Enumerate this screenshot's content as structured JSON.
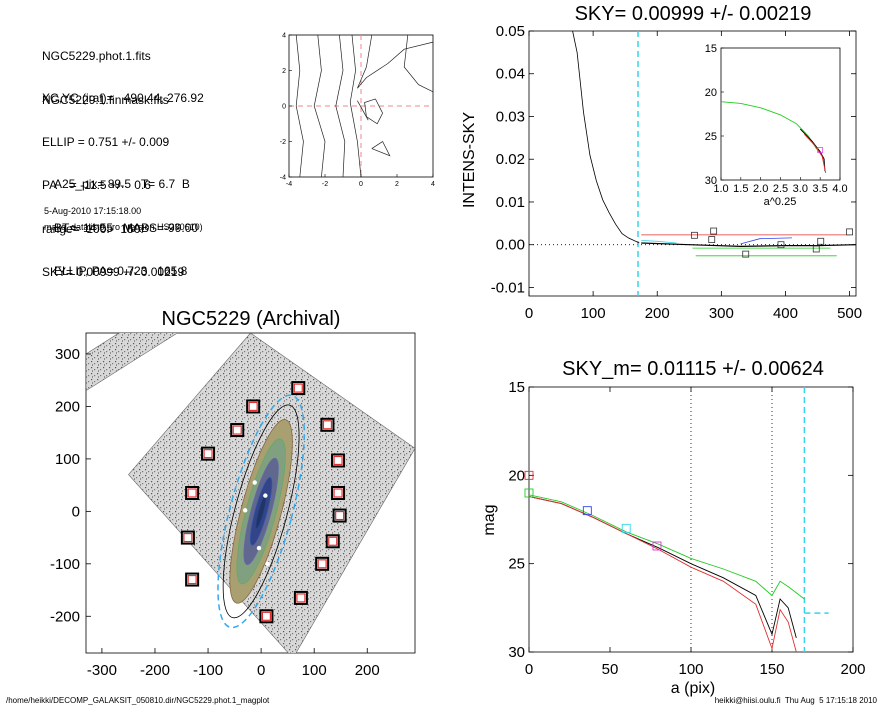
{
  "header": {
    "block1": [
      "NGC5229.phot.1.fits",
      "NGC5229.1.finmask.fits"
    ],
    "block2": [
      "XC,YC (iraf)=   490.44, 276.92",
      "ELLIP = 0.751 +/- 0.009",
      "PA    = -11.5 +/-   0.6",
      "range=  100.-  150.",
      "SKY= 0.00999 +/- 0.00219"
    ],
    "block3": [
      "A25_pix= 89.5   T= 6.7  B",
      "BT=  14.55   MABS=-99.00",
      "ELLIP, PA= 0.723   165.8"
    ],
    "date": "5-Aug-2010 17:15:18.00",
    "program": "make_datalist0.pro (version HS230610)"
  },
  "footer": {
    "left": "/home/heikki/DECOMP_GALAKSIT_050810.dir/NGC5229.phot.1_magplot",
    "right": "heikki@hiisi.oulu.fi  Thu Aug  5 17:15:18 2010"
  },
  "colors": {
    "cyan": "#33d6e8",
    "red": "#e03030",
    "green": "#22cc22",
    "blue": "#3344ee",
    "magenta": "#dd33dd",
    "salmon": "#ee8888"
  },
  "chart_data": [
    {
      "type": "line",
      "id": "contour",
      "title": "",
      "xlim": [
        -4,
        4
      ],
      "ylim": [
        -4,
        4
      ],
      "xticks": [
        "-4",
        "-2",
        "0",
        "2",
        "4"
      ],
      "yticks": [
        "-4",
        "-2",
        "0",
        "2",
        "4"
      ],
      "crosshair": {
        "x": 0,
        "y": 0
      }
    },
    {
      "type": "line",
      "id": "sky",
      "title": "SKY= 0.00999 +/- 0.00219",
      "xlabel": "",
      "ylabel": "INTENS-SKY",
      "xlim": [
        0,
        510
      ],
      "ylim": [
        -0.012,
        0.05
      ],
      "xticks": [
        "0",
        "100",
        "200",
        "300",
        "400",
        "500"
      ],
      "yticks": [
        "-0.01",
        "0.00",
        "0.01",
        "0.02",
        "0.03",
        "0.04",
        "0.05"
      ],
      "vline_x": 170,
      "series": [
        {
          "x": [
            68,
            75,
            85,
            95,
            105,
            115,
            125,
            135,
            145,
            155,
            165,
            172
          ],
          "y": [
            0.05,
            0.045,
            0.031,
            0.021,
            0.015,
            0.0105,
            0.0075,
            0.0048,
            0.0026,
            0.0016,
            0.0009,
            0.0004
          ]
        },
        {
          "x": [
            175,
            250,
            330,
            400,
            450,
            510
          ],
          "y": [
            0.0004,
            0.0,
            -0.0004,
            -0.0002,
            -0.0002,
            0.0
          ]
        }
      ],
      "markers": [
        [
          258,
          0.0022
        ],
        [
          285,
          0.0012
        ],
        [
          288,
          0.0032
        ],
        [
          338,
          -0.0022
        ],
        [
          393,
          0.0
        ],
        [
          448,
          -0.001
        ],
        [
          455,
          0.0008
        ],
        [
          500,
          0.003
        ]
      ],
      "inset": {
        "xlabel": "a^0.25",
        "xlim": [
          1.0,
          4.0
        ],
        "ylim": [
          30,
          15
        ],
        "xticks": [
          "1.0",
          "1.5",
          "2.0",
          "2.5",
          "3.0",
          "3.5",
          "4.0"
        ],
        "yticks": [
          "15",
          "20",
          "25",
          "30"
        ]
      }
    },
    {
      "type": "scatter",
      "id": "image",
      "title": "NGC5229 (Archival)",
      "xlim": [
        -330,
        290
      ],
      "ylim": [
        -270,
        340
      ],
      "xticks": [
        "-300",
        "-200",
        "-100",
        "0",
        "100",
        "200"
      ],
      "yticks": [
        "-200",
        "-100",
        "0",
        "100",
        "200",
        "300"
      ],
      "boxes": [
        [
          70,
          235
        ],
        [
          -15,
          200
        ],
        [
          -45,
          155
        ],
        [
          125,
          165
        ],
        [
          -100,
          110
        ],
        [
          145,
          97
        ],
        [
          -130,
          35
        ],
        [
          145,
          35
        ],
        [
          148,
          -8
        ],
        [
          -138,
          -50
        ],
        [
          135,
          -57
        ],
        [
          115,
          -100
        ],
        [
          -130,
          -130
        ],
        [
          75,
          -165
        ],
        [
          10,
          -200
        ]
      ]
    },
    {
      "type": "line",
      "id": "mag",
      "title": "SKY_m=  0.01115 +/- 0.00624",
      "xlabel": "a (pix)",
      "ylabel": "mag",
      "xlim": [
        0,
        200
      ],
      "ylim": [
        30,
        15
      ],
      "xticks": [
        "0",
        "50",
        "100",
        "150",
        "200"
      ],
      "yticks": [
        "15",
        "20",
        "25",
        "30"
      ],
      "vlines_dotted": [
        100,
        150
      ],
      "vline_cyan": 170,
      "series": [
        {
          "name": "black",
          "x": [
            0,
            20,
            40,
            60,
            80,
            100,
            120,
            140,
            150,
            155,
            160,
            165
          ],
          "y": [
            21.2,
            21.6,
            22.4,
            23.3,
            24.1,
            25.0,
            25.8,
            26.8,
            29.0,
            27.0,
            27.5,
            29.2
          ]
        },
        {
          "name": "red",
          "x": [
            0,
            20,
            40,
            60,
            80,
            100,
            120,
            140,
            150,
            155,
            160,
            165
          ],
          "y": [
            21.2,
            21.6,
            22.4,
            23.3,
            24.2,
            25.2,
            26.0,
            27.3,
            29.8,
            27.6,
            28.3,
            30.0
          ]
        },
        {
          "name": "green",
          "x": [
            0,
            20,
            40,
            60,
            80,
            100,
            120,
            140,
            150,
            155,
            160,
            170
          ],
          "y": [
            21.1,
            21.5,
            22.3,
            23.2,
            23.9,
            24.7,
            25.3,
            26.0,
            26.8,
            26.0,
            26.3,
            27.0
          ]
        }
      ],
      "markers": [
        [
          0,
          20.0,
          "red"
        ],
        [
          0,
          21.0,
          "green"
        ],
        [
          36,
          22.0,
          "blue"
        ],
        [
          60,
          23.0,
          "cyan"
        ],
        [
          79,
          24.0,
          "magenta"
        ]
      ]
    }
  ]
}
